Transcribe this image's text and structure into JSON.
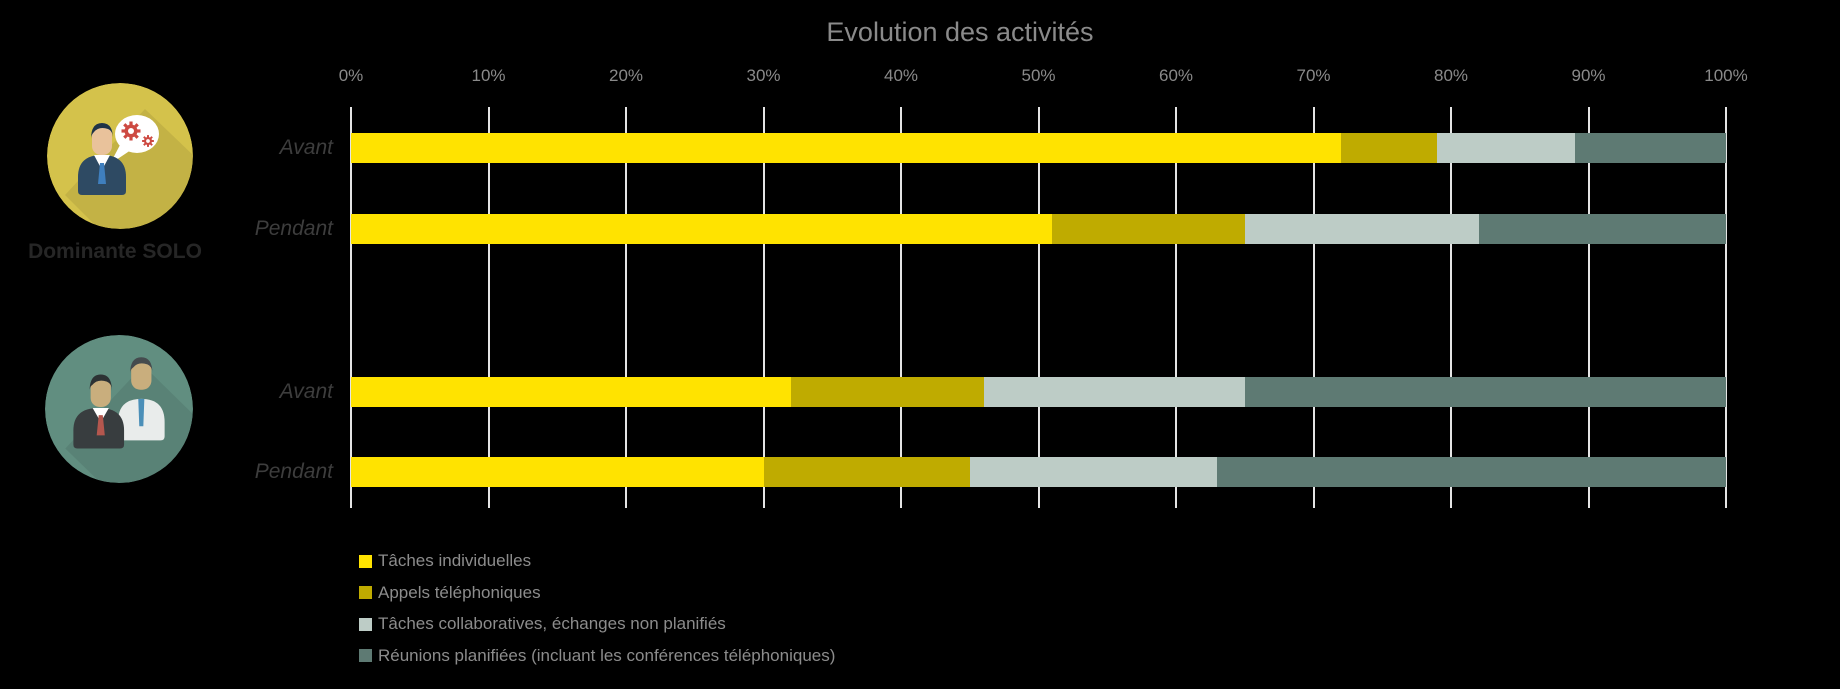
{
  "background": "#000000",
  "text_colors": {
    "title": "#8a8a8a",
    "axis_labels": "#8a8a8a",
    "row_labels": "#3d3d3d",
    "legend": "#8c8c8c",
    "group_label": "#262626"
  },
  "chart_data": {
    "type": "bar",
    "variant": "horizontal-stacked-100percent",
    "title": "Evolution des activités",
    "xlabel": "",
    "ylabel": "",
    "x_range": [
      0,
      100
    ],
    "x_ticks": [
      "0%",
      "10%",
      "20%",
      "30%",
      "40%",
      "50%",
      "60%",
      "70%",
      "80%",
      "90%",
      "100%"
    ],
    "grid": true,
    "gridline_color": "#e4e4e4",
    "legend_position": "bottom-left",
    "series": [
      {
        "name": "Tâches individuelles",
        "color": "#ffe300"
      },
      {
        "name": "Appels téléphoniques",
        "color": "#bfab00"
      },
      {
        "name": "Tâches collaboratives, échanges non planifiés",
        "color": "#bdccc6"
      },
      {
        "name": "Réunions planifiées (incluant les conférences téléphoniques)",
        "color": "#5e7a73"
      }
    ],
    "groups": [
      {
        "label": "Dominante SOLO",
        "icon": "person-with-speech-bubble-gears-icon",
        "icon_bg": "#d4c24b",
        "rows": [
          {
            "label": "Avant",
            "values": [
              72,
              7,
              10,
              11
            ]
          },
          {
            "label": "Pendant",
            "values": [
              51,
              14,
              17,
              18
            ]
          }
        ]
      },
      {
        "label": "",
        "icon": "two-people-icon",
        "icon_bg": "#618e80",
        "rows": [
          {
            "label": "Avant",
            "values": [
              32,
              14,
              19,
              35
            ]
          },
          {
            "label": "Pendant",
            "values": [
              30,
              15,
              18,
              37
            ]
          }
        ]
      }
    ]
  }
}
